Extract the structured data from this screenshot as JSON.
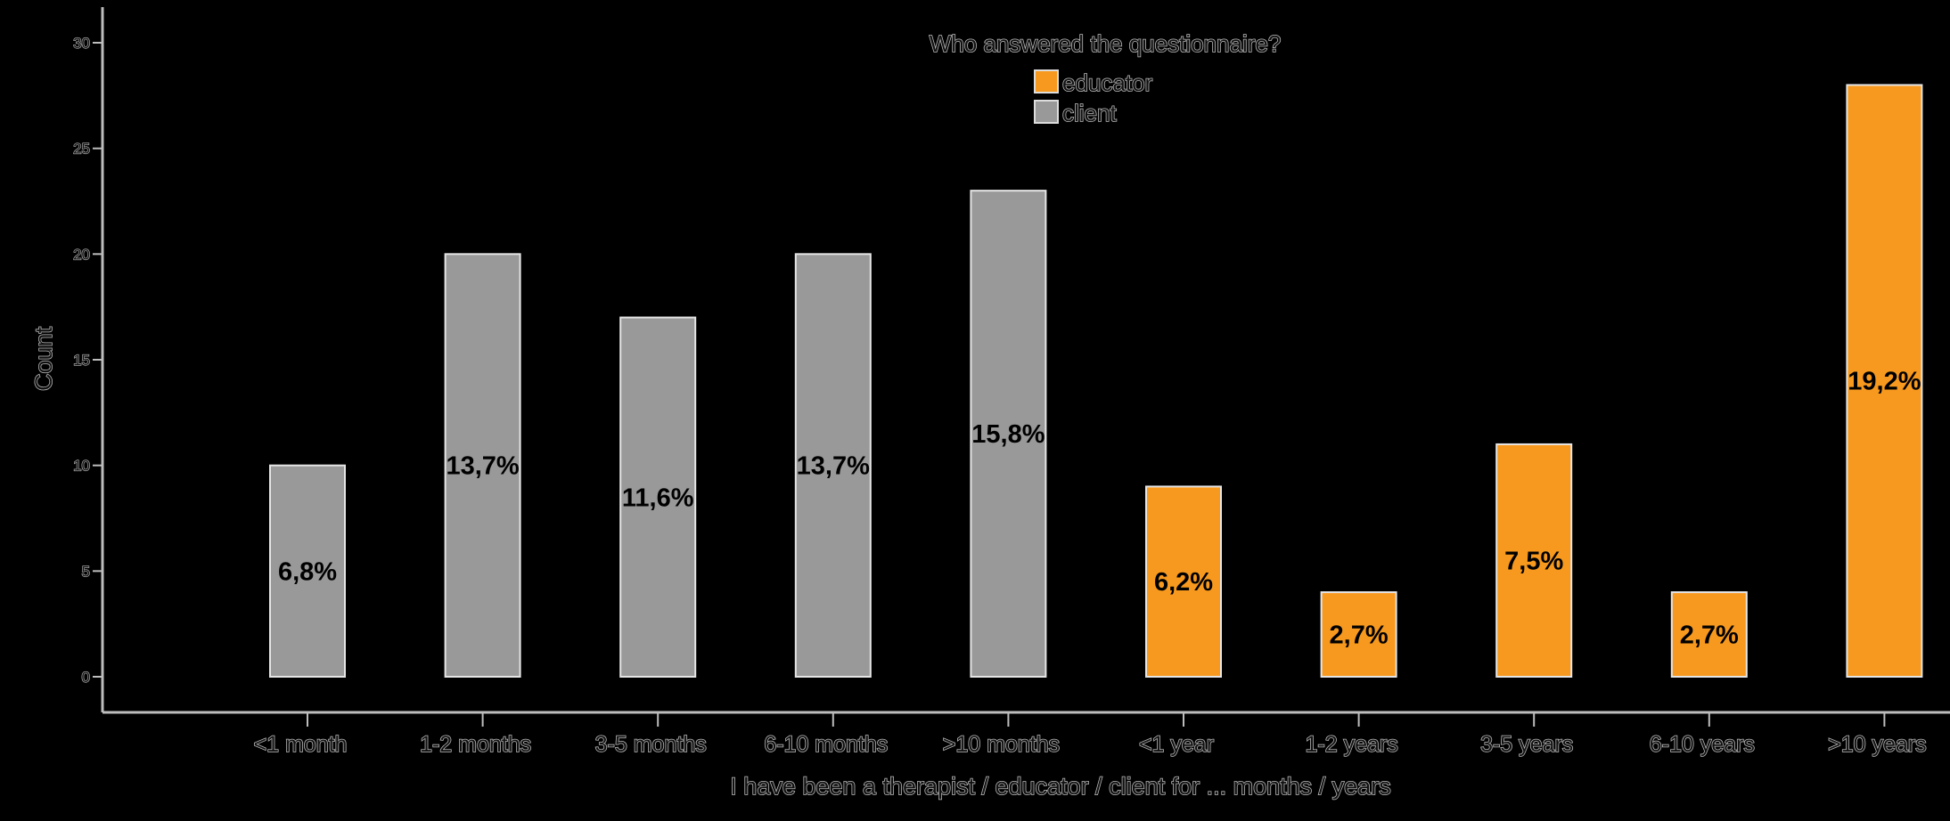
{
  "chart_data": {
    "type": "bar",
    "title": "",
    "xlabel": "I have been a therapist / educator / client for ... months / years",
    "ylabel": "Count",
    "ylim": [
      0,
      30
    ],
    "yticks": [
      0,
      5,
      10,
      15,
      20,
      25,
      30
    ],
    "categories": [
      "<1 month",
      "1-2 months",
      "3-5 months",
      "6-10 months",
      ">10 months",
      "<1 year",
      "1-2 years",
      "3-5 years",
      "6-10 years",
      ">10 years"
    ],
    "legend": {
      "title": "Who answered the questionnaire?",
      "placement": "top-center"
    },
    "series": [
      {
        "name": "educator",
        "color": "#f7991e",
        "values": [
          null,
          null,
          null,
          null,
          null,
          9,
          4,
          11,
          4,
          28
        ],
        "labels": [
          null,
          null,
          null,
          null,
          null,
          "6,2%",
          "2,7%",
          "7,5%",
          "2,7%",
          "19,2%"
        ]
      },
      {
        "name": "client",
        "color": "#999999",
        "values": [
          10,
          20,
          17,
          20,
          23,
          null,
          null,
          null,
          null,
          null
        ],
        "labels": [
          "6,8%",
          "13,7%",
          "11,6%",
          "13,7%",
          "15,8%",
          null,
          null,
          null,
          null,
          null
        ]
      }
    ]
  }
}
